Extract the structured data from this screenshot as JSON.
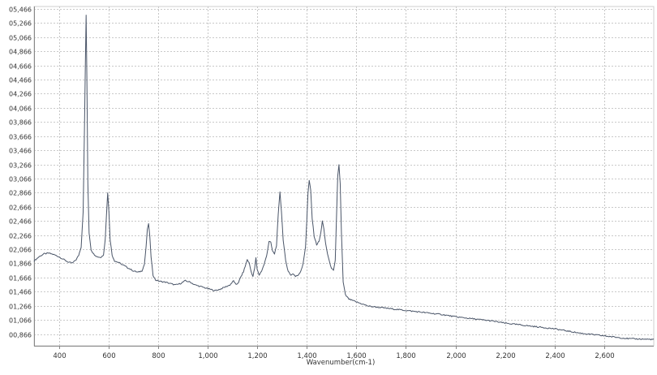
{
  "chart_data": {
    "type": "line",
    "title": "",
    "xlabel": "Wavenumber(cm-1)",
    "ylabel": "",
    "xlim": [
      300,
      2800
    ],
    "ylim": [
      700,
      5500
    ],
    "grid": true,
    "legend": "none",
    "line_color": "#4a5568",
    "x_ticks": [
      400,
      600,
      800,
      1000,
      1200,
      1400,
      1600,
      1800,
      2000,
      2200,
      2400,
      2600
    ],
    "x_tick_labels": [
      "400",
      "600",
      "800",
      "1,000",
      "1,200",
      "1,400",
      "1,600",
      "1,800",
      "2,000",
      "2,200",
      "2,400",
      "2,600"
    ],
    "y_ticks": [
      866,
      1066,
      1266,
      1466,
      1666,
      1866,
      2066,
      2266,
      2466,
      2666,
      2866,
      3066,
      3266,
      3466,
      3666,
      3866,
      4066,
      4266,
      4466,
      4666,
      4866,
      5066,
      5266,
      5466
    ],
    "y_tick_labels": [
      "00,866",
      "01,066",
      "01,266",
      "01,466",
      "01,666",
      "01,866",
      "02,066",
      "02,266",
      "02,466",
      "02,666",
      "02,866",
      "03,066",
      "03,266",
      "03,466",
      "03,666",
      "03,866",
      "04,066",
      "04,266",
      "04,466",
      "04,666",
      "04,866",
      "05,066",
      "05,266",
      "05,466"
    ],
    "series": [
      {
        "points": [
          [
            300,
            1900
          ],
          [
            320,
            1960
          ],
          [
            340,
            2000
          ],
          [
            360,
            2010
          ],
          [
            380,
            1990
          ],
          [
            400,
            1960
          ],
          [
            420,
            1920
          ],
          [
            440,
            1880
          ],
          [
            455,
            1870
          ],
          [
            470,
            1920
          ],
          [
            480,
            1980
          ],
          [
            490,
            2100
          ],
          [
            498,
            2600
          ],
          [
            503,
            3700
          ],
          [
            507,
            4700
          ],
          [
            510,
            5380
          ],
          [
            513,
            4500
          ],
          [
            517,
            3000
          ],
          [
            522,
            2300
          ],
          [
            530,
            2060
          ],
          [
            540,
            2000
          ],
          [
            555,
            1960
          ],
          [
            570,
            1950
          ],
          [
            580,
            1990
          ],
          [
            587,
            2200
          ],
          [
            592,
            2550
          ],
          [
            597,
            2860
          ],
          [
            602,
            2600
          ],
          [
            607,
            2200
          ],
          [
            615,
            1980
          ],
          [
            625,
            1900
          ],
          [
            640,
            1880
          ],
          [
            660,
            1840
          ],
          [
            680,
            1800
          ],
          [
            700,
            1760
          ],
          [
            720,
            1740
          ],
          [
            735,
            1760
          ],
          [
            745,
            1850
          ],
          [
            752,
            2100
          ],
          [
            757,
            2350
          ],
          [
            762,
            2420
          ],
          [
            767,
            2250
          ],
          [
            772,
            1950
          ],
          [
            780,
            1700
          ],
          [
            790,
            1630
          ],
          [
            810,
            1610
          ],
          [
            830,
            1600
          ],
          [
            850,
            1580
          ],
          [
            870,
            1560
          ],
          [
            890,
            1580
          ],
          [
            910,
            1620
          ],
          [
            930,
            1600
          ],
          [
            950,
            1560
          ],
          [
            970,
            1540
          ],
          [
            990,
            1520
          ],
          [
            1010,
            1500
          ],
          [
            1030,
            1480
          ],
          [
            1050,
            1500
          ],
          [
            1070,
            1530
          ],
          [
            1090,
            1560
          ],
          [
            1105,
            1620
          ],
          [
            1115,
            1560
          ],
          [
            1125,
            1600
          ],
          [
            1135,
            1680
          ],
          [
            1145,
            1750
          ],
          [
            1155,
            1860
          ],
          [
            1160,
            1920
          ],
          [
            1168,
            1870
          ],
          [
            1175,
            1760
          ],
          [
            1183,
            1680
          ],
          [
            1190,
            1800
          ],
          [
            1195,
            1940
          ],
          [
            1200,
            1780
          ],
          [
            1208,
            1700
          ],
          [
            1218,
            1760
          ],
          [
            1228,
            1850
          ],
          [
            1238,
            1970
          ],
          [
            1248,
            2180
          ],
          [
            1255,
            2160
          ],
          [
            1262,
            2040
          ],
          [
            1270,
            2000
          ],
          [
            1278,
            2120
          ],
          [
            1285,
            2550
          ],
          [
            1292,
            2880
          ],
          [
            1298,
            2600
          ],
          [
            1305,
            2200
          ],
          [
            1315,
            1900
          ],
          [
            1325,
            1760
          ],
          [
            1335,
            1700
          ],
          [
            1345,
            1720
          ],
          [
            1355,
            1680
          ],
          [
            1365,
            1700
          ],
          [
            1375,
            1750
          ],
          [
            1385,
            1850
          ],
          [
            1395,
            2100
          ],
          [
            1400,
            2450
          ],
          [
            1405,
            2850
          ],
          [
            1410,
            3040
          ],
          [
            1416,
            2900
          ],
          [
            1422,
            2500
          ],
          [
            1430,
            2250
          ],
          [
            1440,
            2130
          ],
          [
            1450,
            2180
          ],
          [
            1457,
            2300
          ],
          [
            1463,
            2470
          ],
          [
            1469,
            2350
          ],
          [
            1476,
            2150
          ],
          [
            1484,
            2000
          ],
          [
            1492,
            1880
          ],
          [
            1500,
            1800
          ],
          [
            1508,
            1760
          ],
          [
            1515,
            1900
          ],
          [
            1520,
            2500
          ],
          [
            1525,
            3100
          ],
          [
            1530,
            3260
          ],
          [
            1535,
            3000
          ],
          [
            1540,
            2300
          ],
          [
            1547,
            1600
          ],
          [
            1556,
            1420
          ],
          [
            1570,
            1360
          ],
          [
            1600,
            1320
          ],
          [
            1650,
            1260
          ],
          [
            1700,
            1240
          ],
          [
            1750,
            1220
          ],
          [
            1800,
            1200
          ],
          [
            1850,
            1180
          ],
          [
            1900,
            1160
          ],
          [
            1950,
            1140
          ],
          [
            2000,
            1110
          ],
          [
            2050,
            1090
          ],
          [
            2100,
            1070
          ],
          [
            2150,
            1050
          ],
          [
            2200,
            1020
          ],
          [
            2250,
            1000
          ],
          [
            2300,
            980
          ],
          [
            2350,
            960
          ],
          [
            2400,
            940
          ],
          [
            2450,
            910
          ],
          [
            2500,
            880
          ],
          [
            2550,
            860
          ],
          [
            2600,
            840
          ],
          [
            2650,
            820
          ],
          [
            2700,
            800
          ],
          [
            2750,
            795
          ],
          [
            2800,
            790
          ]
        ]
      }
    ]
  }
}
